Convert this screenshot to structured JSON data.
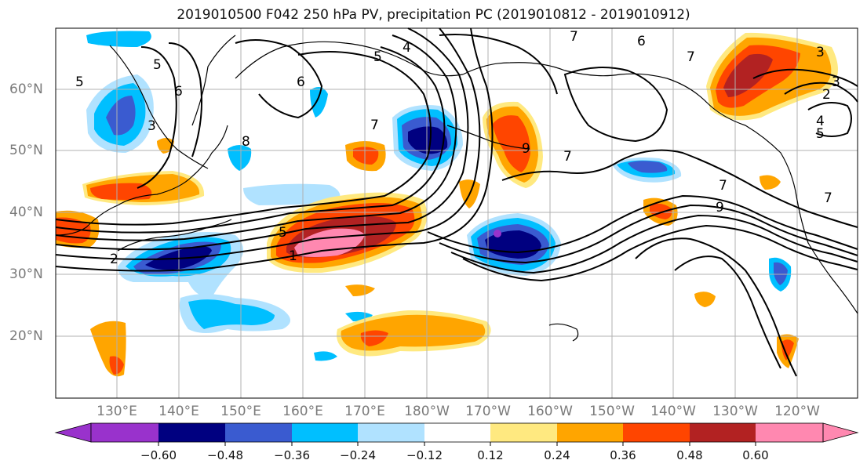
{
  "title": "2019010500 F042 250 hPa PV, precipitation PC (2019010812 - 2019010912)",
  "map": {
    "lat_labels": [
      "60°N",
      "50°N",
      "40°N",
      "30°N",
      "20°N"
    ],
    "lon_labels": [
      "130°E",
      "140°E",
      "150°E",
      "160°E",
      "170°E",
      "180°W",
      "170°W",
      "160°W",
      "150°W",
      "140°W",
      "130°W",
      "120°W"
    ],
    "contour_labels": [
      "5",
      "5",
      "5",
      "5",
      "4",
      "6",
      "6",
      "7",
      "7",
      "7",
      "7",
      "7",
      "7",
      "8",
      "9",
      "9",
      "6",
      "5",
      "4",
      "3",
      "2",
      "3",
      "1",
      "2",
      "3"
    ]
  },
  "colorbar": {
    "ticks": [
      "−0.60",
      "−0.48",
      "−0.36",
      "−0.24",
      "−0.12",
      "0.12",
      "0.24",
      "0.36",
      "0.48",
      "0.60"
    ],
    "colors": [
      "#9932cc",
      "#000080",
      "#3a5bd0",
      "#00bfff",
      "#b0e2ff",
      "#ffffff",
      "#ffe980",
      "#ffa500",
      "#ff4500",
      "#b22222",
      "#ff88b0"
    ]
  },
  "fills": {
    "purple": "#9932cc",
    "navy": "#000080",
    "blue": "#3a5bd0",
    "sky": "#00bfff",
    "lightblue": "#b0e2ff",
    "yellow": "#ffe980",
    "orange": "#ffa500",
    "red": "#ff4500",
    "darkred": "#b22222",
    "pink": "#ff88b0"
  }
}
